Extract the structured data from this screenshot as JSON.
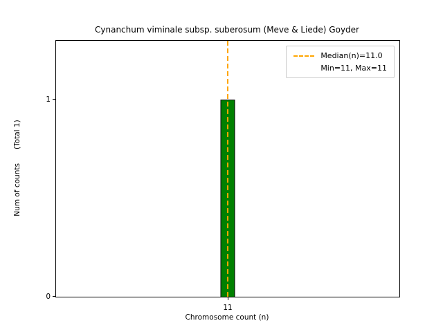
{
  "title": "Cynanchum viminale subsp. suberosum (Meve & Liede) Goyder",
  "chart_data": {
    "type": "bar",
    "categories": [
      "11"
    ],
    "values": [
      1
    ],
    "title": "Cynanchum viminale subsp. suberosum (Meve & Liede) Goyder",
    "xlabel": "Chromosome count (n)",
    "ylabel": "Num of counts      (Total 1)",
    "ylim": [
      0,
      1.3
    ],
    "yticks": [
      {
        "value": 0,
        "label": "0"
      },
      {
        "value": 1,
        "label": "1"
      }
    ],
    "grid": false,
    "bar_color": "#008000",
    "bar_edge_color": "#000000",
    "median_line": {
      "value": 11.0,
      "color": "#ffa500",
      "style": "dashed"
    },
    "legend": {
      "position": "upper right",
      "entries": [
        {
          "label": "Median(n)=11.0",
          "marker": "dashed-orange-line"
        },
        {
          "label": "Min=11, Max=11",
          "marker": "none"
        }
      ]
    }
  }
}
